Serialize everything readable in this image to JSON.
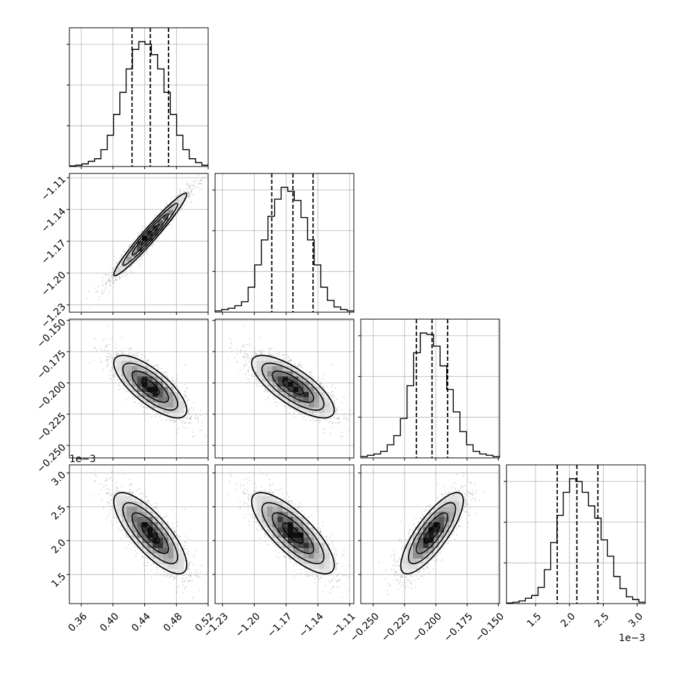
{
  "chart_data": {
    "type": "corner",
    "grid": true,
    "quantiles_note_none": "",
    "parameters": [
      {
        "range": [
          0.345,
          0.52
        ],
        "ticks": [
          0.36,
          0.4,
          0.44,
          0.48,
          0.52
        ],
        "tick_labels": [
          "0.36",
          "0.40",
          "0.44",
          "0.48",
          "0.52"
        ],
        "offset_label": "",
        "quantiles": [
          0.424,
          0.447,
          0.47
        ],
        "hist": [
          0.5,
          1,
          2,
          4,
          6,
          13,
          24,
          40,
          57,
          75,
          90,
          96,
          94,
          86,
          75,
          57,
          40,
          24,
          13,
          6,
          3,
          1
        ]
      },
      {
        "range": [
          -1.237,
          -1.106
        ],
        "ticks": [
          -1.23,
          -1.2,
          -1.17,
          -1.14,
          -1.11
        ],
        "tick_labels": [
          "−1.23",
          "−1.20",
          "−1.17",
          "−1.14",
          "−1.11"
        ],
        "offset_label": "",
        "quantiles": [
          -1.1835,
          -1.1635,
          -1.1445
        ],
        "hist": [
          1,
          2,
          3,
          5,
          8,
          19,
          36,
          55,
          73,
          86,
          95,
          92,
          85,
          72,
          55,
          36,
          19,
          9,
          4,
          2,
          1
        ]
      },
      {
        "range": [
          -0.26,
          -0.149
        ],
        "ticks": [
          -0.25,
          -0.225,
          -0.2,
          -0.175,
          -0.15
        ],
        "tick_labels": [
          "−0.250",
          "−0.225",
          "−0.200",
          "−0.175",
          "−0.150"
        ],
        "offset_label": "",
        "quantiles": [
          -0.2155,
          -0.203,
          -0.1905
        ],
        "hist": [
          1,
          2,
          3,
          5,
          10,
          17,
          30,
          55,
          80,
          95,
          94,
          85,
          70,
          52,
          35,
          20,
          10,
          5,
          3,
          2,
          1
        ]
      },
      {
        "range": [
          1.07,
          3.12
        ],
        "ticks": [
          1.5,
          2.0,
          2.5,
          3.0
        ],
        "tick_labels": [
          "1.5",
          "2.0",
          "2.5",
          "3.0"
        ],
        "offset_label": "1e−3",
        "quantiles": [
          1.82,
          2.11,
          2.42
        ],
        "hist": [
          0.5,
          1,
          2,
          4,
          6,
          12,
          25,
          45,
          65,
          82,
          92,
          90,
          82,
          72,
          63,
          47,
          35,
          20,
          11,
          5,
          3,
          1
        ]
      }
    ],
    "pair_correlations": {
      "1-0": 0.97,
      "2-0": -0.75,
      "2-1": -0.75,
      "3-0": -0.78,
      "3-1": -0.78,
      "3-2": 0.8
    },
    "row_offset_label": "1e−3"
  }
}
